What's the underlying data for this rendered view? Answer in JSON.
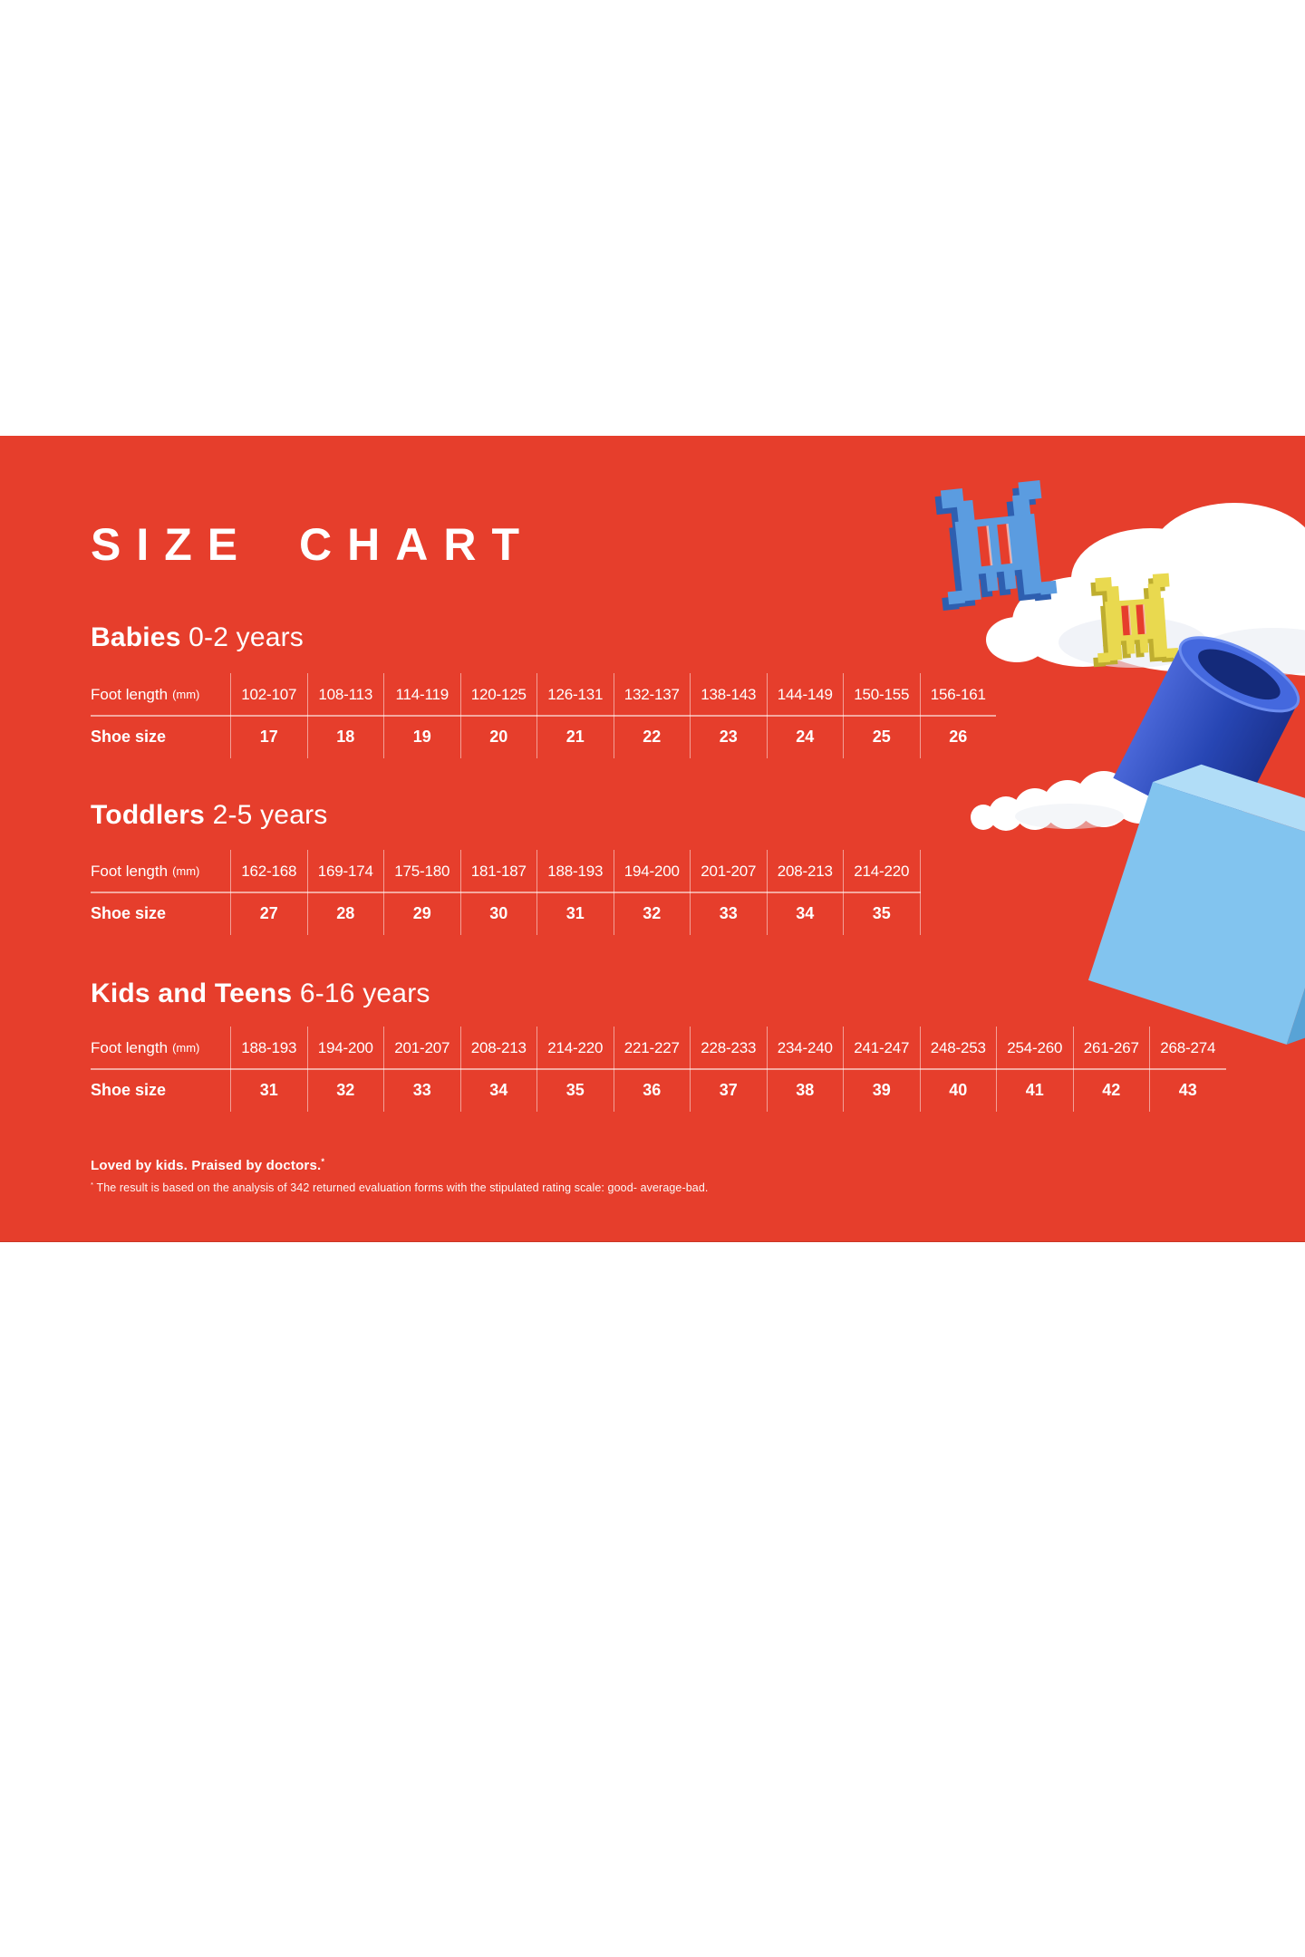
{
  "banner": {
    "title": "SIZE CHART",
    "colors": {
      "background_red": "#e63e2c",
      "text_white": "#ffffff",
      "divider": "rgba(255,255,255,0.5)",
      "invader_blue": "#5b9ce0",
      "invader_blue_edge": "#2e5fb0",
      "invader_yellow": "#e9d94f",
      "invader_yellow_edge": "#bfae2f",
      "rocket_dark_blue": "#1b3390",
      "rocket_light_blue": "#82c4ef",
      "cloud_white": "#ffffff"
    },
    "sections": [
      {
        "name": "Babies",
        "age": "0-2 years",
        "foot_label": "Foot length",
        "foot_unit": "(mm)",
        "shoe_label": "Shoe size",
        "foot_lengths": [
          "102-107",
          "108-113",
          "114-119",
          "120-125",
          "126-131",
          "132-137",
          "138-143",
          "144-149",
          "150-155",
          "156-161"
        ],
        "shoe_sizes": [
          "17",
          "18",
          "19",
          "20",
          "21",
          "22",
          "23",
          "24",
          "25",
          "26"
        ],
        "trailing_divider": false
      },
      {
        "name": "Toddlers",
        "age": "2-5 years",
        "foot_label": "Foot length",
        "foot_unit": "(mm)",
        "shoe_label": "Shoe size",
        "foot_lengths": [
          "162-168",
          "169-174",
          "175-180",
          "181-187",
          "188-193",
          "194-200",
          "201-207",
          "208-213",
          "214-220"
        ],
        "shoe_sizes": [
          "27",
          "28",
          "29",
          "30",
          "31",
          "32",
          "33",
          "34",
          "35"
        ],
        "trailing_divider": true
      },
      {
        "name": "Kids and Teens",
        "age": "6-16 years",
        "foot_label": "Foot length",
        "foot_unit": "(mm)",
        "shoe_label": "Shoe size",
        "foot_lengths": [
          "188-193",
          "194-200",
          "201-207",
          "208-213",
          "214-220",
          "221-227",
          "228-233",
          "234-240",
          "241-247",
          "248-253",
          "254-260",
          "261-267",
          "268-274"
        ],
        "shoe_sizes": [
          "31",
          "32",
          "33",
          "34",
          "35",
          "36",
          "37",
          "38",
          "39",
          "40",
          "41",
          "42",
          "43"
        ],
        "trailing_divider": false
      }
    ],
    "footer_bold": "Loved by kids. Praised by doctors.",
    "footer_marker": "*",
    "footnote_marker": "*",
    "footnote_text": " The result is based on the analysis of 342 returned evaluation forms with the stipulated rating scale: good- average-bad.",
    "decorations": [
      "cloud-large-graphic",
      "blue-invader-icon",
      "yellow-invader-icon",
      "smoke-trail-cloud-graphic",
      "rocket-block-graphic"
    ]
  }
}
